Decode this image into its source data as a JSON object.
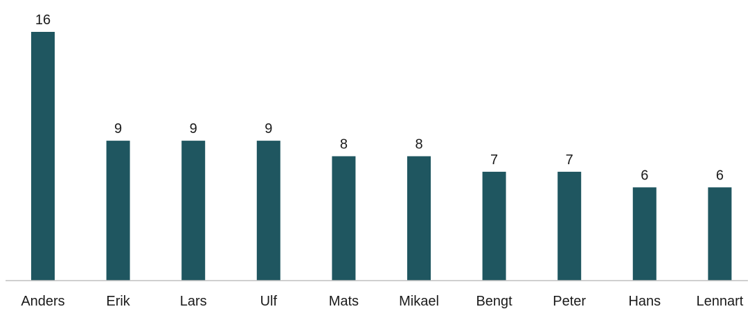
{
  "chart_data": {
    "type": "bar",
    "title": "",
    "xlabel": "",
    "ylabel": "",
    "categories": [
      "Anders",
      "Erik",
      "Lars",
      "Ulf",
      "Mats",
      "Mikael",
      "Bengt",
      "Peter",
      "Hans",
      "Lennart"
    ],
    "values": [
      16,
      9,
      9,
      9,
      8,
      8,
      7,
      7,
      6,
      6
    ],
    "ylim": [
      0,
      16
    ],
    "grid": false,
    "legend": "none",
    "data_labels": true,
    "bar_color": "#1f5660",
    "axis_color": "#bfbfbf"
  }
}
